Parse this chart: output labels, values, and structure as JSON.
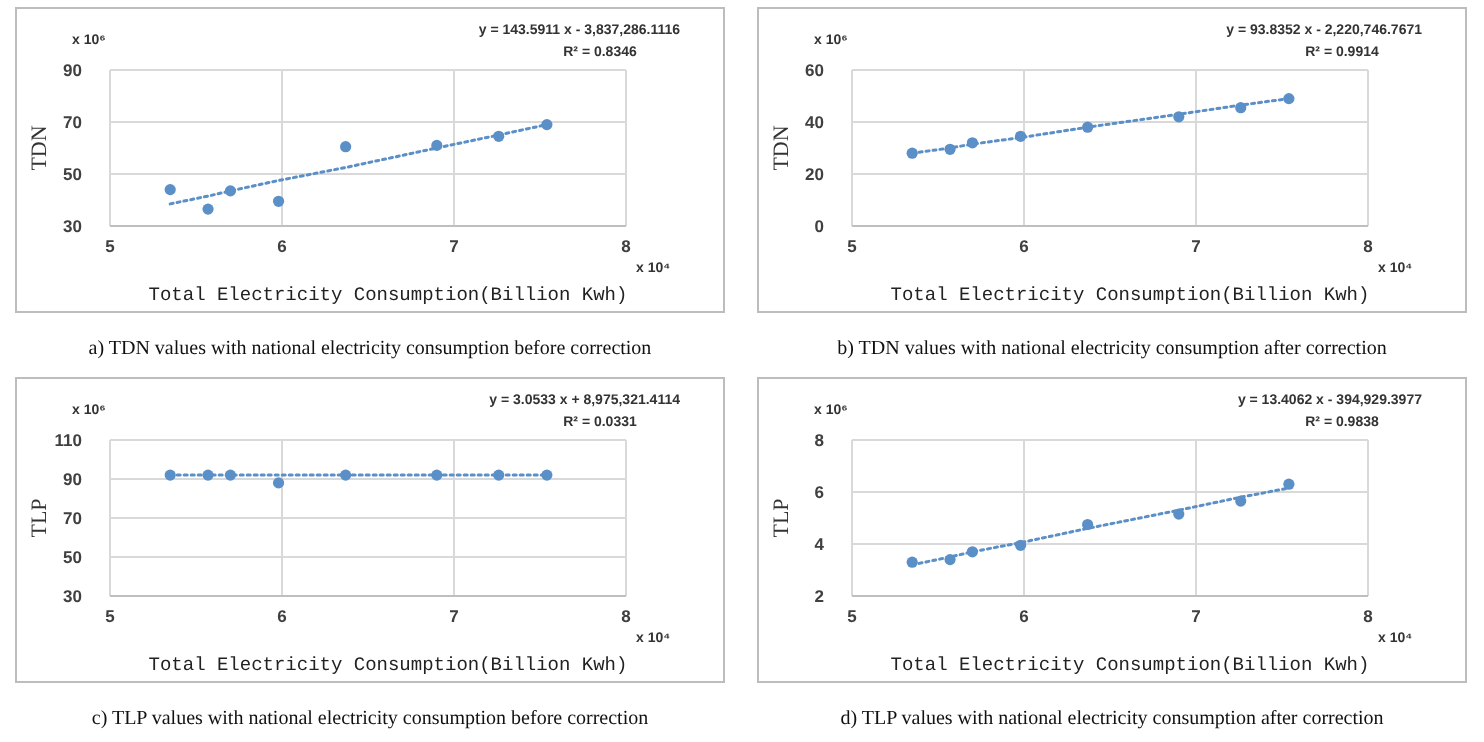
{
  "chart_data": [
    {
      "type": "scatter",
      "title": "a) TDN values with national electricity consumption before correction",
      "xlabel": "Total Electricity Consumption(Billion Kwh)",
      "ylabel": "TDN",
      "x": [
        5.35,
        5.57,
        5.7,
        5.98,
        6.37,
        6.9,
        7.26,
        7.54
      ],
      "xlim": [
        5,
        8
      ],
      "xticks": [
        5,
        6,
        7,
        8
      ],
      "ylim": [
        30,
        90
      ],
      "yticks": [
        30,
        50,
        70,
        90
      ],
      "grid": true,
      "marker": "circle",
      "annotations": [
        "y = 143.5911 x - 3,837,286.1116",
        "R² = 0.8346",
        "x 10⁶",
        "x 10⁴"
      ],
      "series": [
        {
          "color": "#5b8fc7",
          "values": [
            44,
            36.5,
            43.5,
            39.5,
            60.5,
            61,
            64.5,
            69
          ]
        },
        {
          "type": "line",
          "color": "#5b8fc7",
          "line_style": "dotted",
          "marker": "none",
          "values": [
            38.5,
            41.5,
            43.5,
            47.5,
            52.5,
            60,
            65,
            69
          ]
        }
      ]
    },
    {
      "type": "scatter",
      "title": "b) TDN values with national electricity consumption after correction",
      "xlabel": "Total Electricity Consumption(Billion Kwh)",
      "ylabel": "TDN",
      "x": [
        5.35,
        5.57,
        5.7,
        5.98,
        6.37,
        6.9,
        7.26,
        7.54
      ],
      "xlim": [
        5,
        8
      ],
      "xticks": [
        5,
        6,
        7,
        8
      ],
      "ylim": [
        0,
        60
      ],
      "yticks": [
        0,
        20,
        40,
        60
      ],
      "grid": true,
      "marker": "circle",
      "annotations": [
        "y = 93.8352 x - 2,220,746.7671",
        "R² = 0.9914",
        "x 10⁶",
        "x 10⁴"
      ],
      "series": [
        {
          "color": "#5b8fc7",
          "values": [
            28,
            29.5,
            32,
            34.5,
            38,
            42,
            45.5,
            49
          ]
        },
        {
          "type": "line",
          "color": "#5b8fc7",
          "line_style": "dotted",
          "marker": "none",
          "values": [
            28,
            30,
            31.5,
            34,
            38,
            43,
            46.5,
            49
          ]
        }
      ]
    },
    {
      "type": "scatter",
      "title": "c) TLP values with national electricity consumption before correction",
      "xlabel": "Total Electricity Consumption(Billion Kwh)",
      "ylabel": "TLP",
      "x": [
        5.35,
        5.57,
        5.7,
        5.98,
        6.37,
        6.9,
        7.26,
        7.54
      ],
      "xlim": [
        5,
        8
      ],
      "xticks": [
        5,
        6,
        7,
        8
      ],
      "ylim": [
        30,
        110
      ],
      "yticks": [
        30,
        50,
        70,
        90,
        110
      ],
      "grid": true,
      "marker": "circle",
      "annotations": [
        "y = 3.0533 x + 8,975,321.4114",
        "R² = 0.0331",
        "x 10⁶",
        "x 10⁴"
      ],
      "series": [
        {
          "color": "#5b8fc7",
          "values": [
            92,
            92,
            92,
            88,
            92,
            92,
            92,
            92
          ]
        },
        {
          "type": "line",
          "color": "#5b8fc7",
          "line_style": "dotted",
          "marker": "none",
          "values": [
            92,
            92,
            92,
            92,
            92,
            92,
            92,
            92
          ]
        }
      ]
    },
    {
      "type": "scatter",
      "title": "d) TLP values with national electricity consumption after correction",
      "xlabel": "Total Electricity Consumption(Billion Kwh)",
      "ylabel": "TLP",
      "x": [
        5.35,
        5.57,
        5.7,
        5.98,
        6.37,
        6.9,
        7.26,
        7.54
      ],
      "xlim": [
        5,
        8
      ],
      "xticks": [
        5,
        6,
        7,
        8
      ],
      "ylim": [
        2,
        8
      ],
      "yticks": [
        2,
        4,
        6,
        8
      ],
      "grid": true,
      "marker": "circle",
      "annotations": [
        "y = 13.4062 x - 394,929.3977",
        "R² = 0.9838",
        "x 10⁶",
        "x 10⁴"
      ],
      "series": [
        {
          "color": "#5b8fc7",
          "values": [
            3.3,
            3.4,
            3.7,
            3.95,
            4.75,
            5.15,
            5.65,
            6.3
          ]
        },
        {
          "type": "line",
          "color": "#5b8fc7",
          "line_style": "dotted",
          "marker": "none",
          "values": [
            3.2,
            3.5,
            3.7,
            4.05,
            4.6,
            5.3,
            5.8,
            6.15
          ]
        }
      ]
    }
  ]
}
